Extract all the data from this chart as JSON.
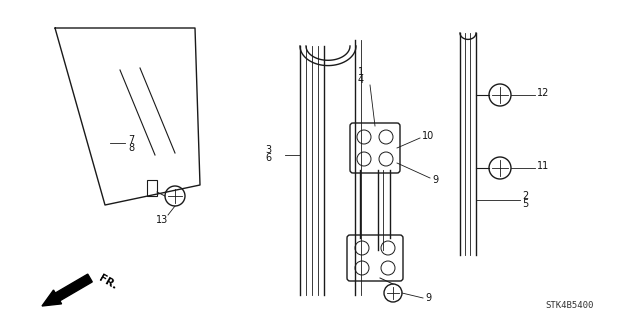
{
  "background_color": "#ffffff",
  "catalog_id": "STK4B5400",
  "color": "#1a1a1a",
  "lw": 1.0
}
